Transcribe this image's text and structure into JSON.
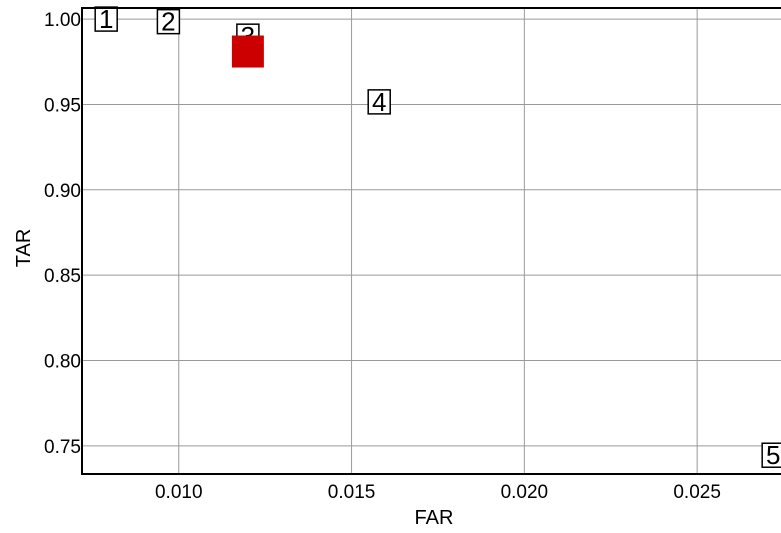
{
  "chart_data": {
    "type": "scatter",
    "xlabel": "FAR",
    "ylabel": "TAR",
    "xlim": [
      0.0072,
      0.0276
    ],
    "ylim": [
      0.7335,
      1.0065
    ],
    "x_ticks": [
      "0.010",
      "0.015",
      "0.020",
      "0.025"
    ],
    "x_tick_values": [
      0.01,
      0.015,
      0.02,
      0.025
    ],
    "y_ticks": [
      "0.75",
      "0.80",
      "0.85",
      "0.90",
      "0.95",
      "1.00"
    ],
    "y_tick_values": [
      0.75,
      0.8,
      0.85,
      0.9,
      0.95,
      1.0
    ],
    "grid": true,
    "points": [
      {
        "label": "1",
        "x": 0.0079,
        "y": 1.0
      },
      {
        "label": "2",
        "x": 0.0097,
        "y": 0.9985
      },
      {
        "label": "3",
        "x": 0.012,
        "y": 0.99
      },
      {
        "label": "4",
        "x": 0.0158,
        "y": 0.9515
      },
      {
        "label": "5",
        "x": 0.0272,
        "y": 0.7445
      }
    ],
    "highlight": {
      "x": 0.012,
      "y": 0.981,
      "color": "#cc0000"
    }
  }
}
